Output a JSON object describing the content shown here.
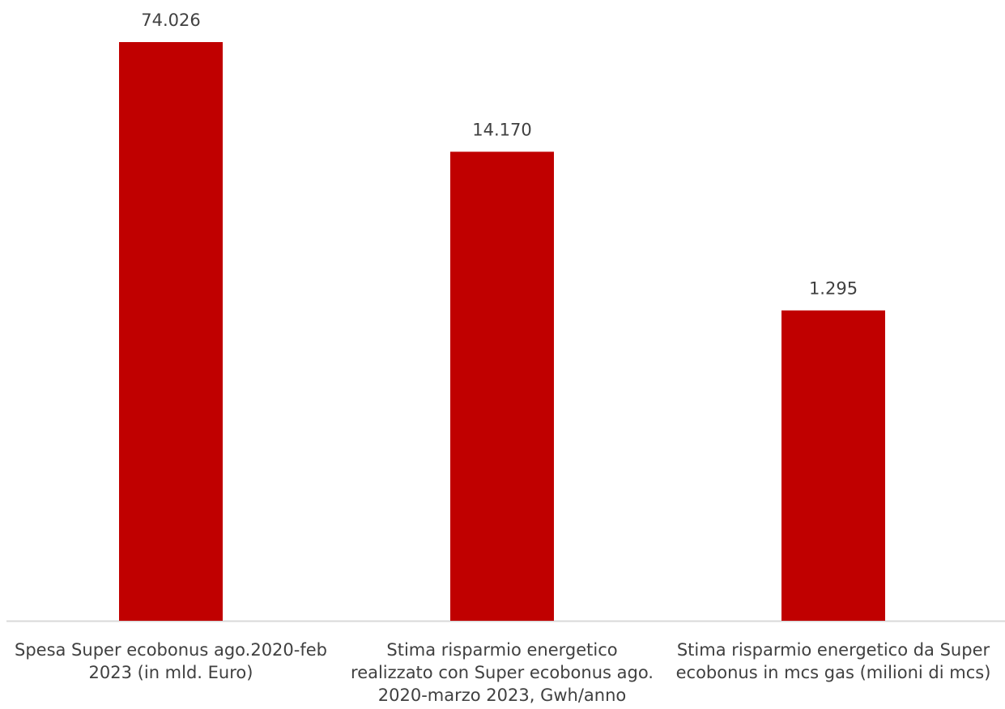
{
  "chart_data": {
    "type": "bar",
    "categories": [
      "Spesa Super ecobonus ago.2020-feb 2023 (in mld. Euro)",
      "Stima risparmio energetico realizzato con Super ecobonus ago. 2020-marzo 2023, Gwh/anno",
      "Stima risparmio energetico da Super ecobonus in mcs gas (milioni di mcs)"
    ],
    "category_lines": [
      [
        "Spesa Super ecobonus ago.2020-feb",
        "2023 (in mld. Euro)"
      ],
      [
        "Stima risparmio energetico",
        "realizzato con Super ecobonus ago.",
        "2020-marzo 2023, Gwh/anno"
      ],
      [
        "Stima risparmio energetico da Super",
        "ecobonus in mcs gas (milioni di mcs)"
      ]
    ],
    "values": [
      74.026,
      14.17,
      1.295
    ],
    "data_labels": [
      "74.026",
      "14.170",
      "1.295"
    ],
    "scale": "log",
    "bar_color": "#C00000",
    "axis_color": "#D9D9D9",
    "label_color": "#404040",
    "grid": false,
    "legend": "none"
  }
}
